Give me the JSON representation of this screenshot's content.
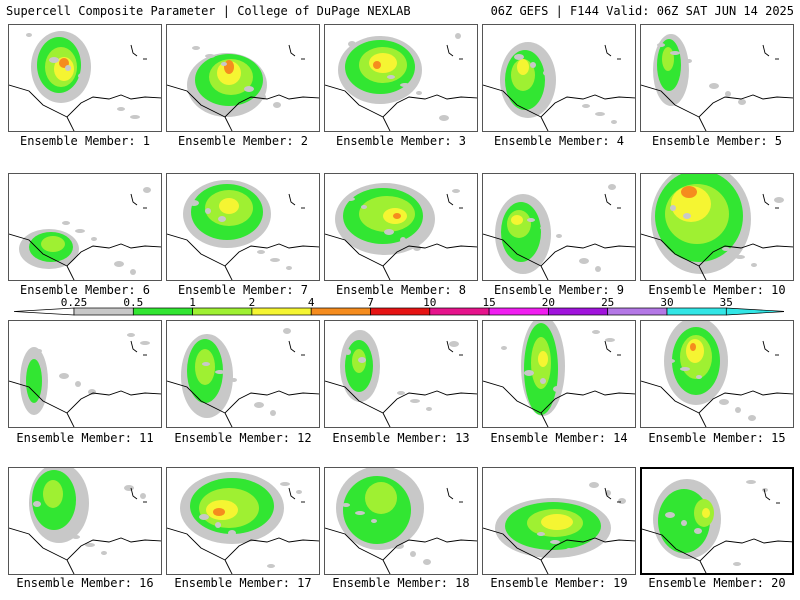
{
  "header": {
    "title": "Supercell Composite Parameter | College of DuPage NEXLAB",
    "run_info": "06Z GEFS | F144 Valid: 06Z SAT JUN 14 2025"
  },
  "members": [
    {
      "label": "Ensemble Member: 1"
    },
    {
      "label": "Ensemble Member: 2"
    },
    {
      "label": "Ensemble Member: 3"
    },
    {
      "label": "Ensemble Member: 4"
    },
    {
      "label": "Ensemble Member: 5"
    },
    {
      "label": "Ensemble Member: 6"
    },
    {
      "label": "Ensemble Member: 7"
    },
    {
      "label": "Ensemble Member: 8"
    },
    {
      "label": "Ensemble Member: 9"
    },
    {
      "label": "Ensemble Member: 10"
    },
    {
      "label": "Ensemble Member: 11"
    },
    {
      "label": "Ensemble Member: 12"
    },
    {
      "label": "Ensemble Member: 13"
    },
    {
      "label": "Ensemble Member: 14"
    },
    {
      "label": "Ensemble Member: 15"
    },
    {
      "label": "Ensemble Member: 16"
    },
    {
      "label": "Ensemble Member: 17"
    },
    {
      "label": "Ensemble Member: 18"
    },
    {
      "label": "Ensemble Member: 19"
    },
    {
      "label": "Ensemble Member: 20"
    }
  ],
  "colorbar": {
    "ticks": [
      "0.25",
      "0.5",
      "1",
      "2",
      "4",
      "7",
      "10",
      "15",
      "20",
      "25",
      "30",
      "35"
    ],
    "colors": [
      "#ffffff",
      "#c8c8c8",
      "#32e632",
      "#9ff032",
      "#f5f532",
      "#f58c1e",
      "#e61414",
      "#e6148c",
      "#f01ef0",
      "#a014dc",
      "#b478e6",
      "#32e6e6"
    ]
  }
}
